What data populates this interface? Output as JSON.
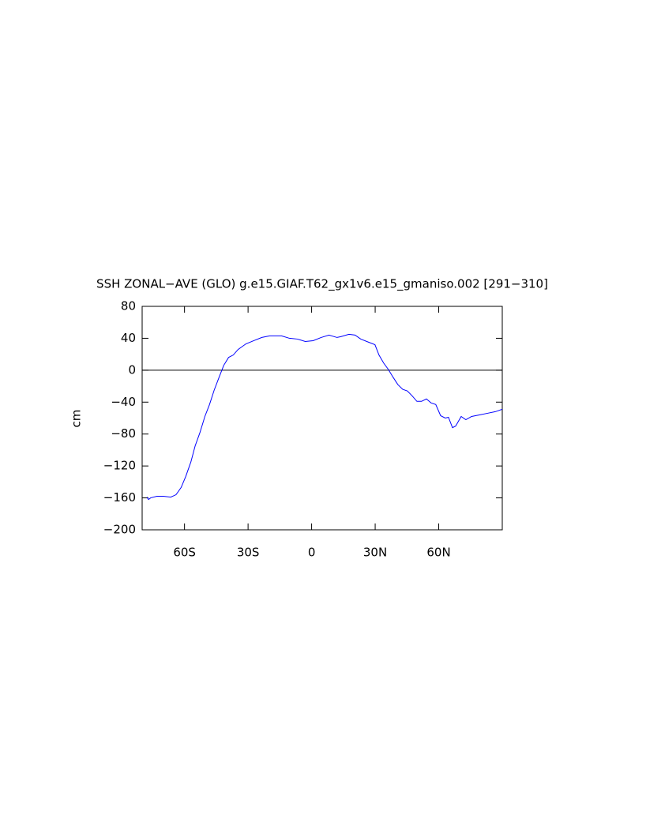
{
  "chart_data": {
    "type": "line",
    "title": "SSH ZONAL−AVE (GLO) g.e15.GIAF.T62_gx1v6.e15_gmaniso.002 [291−310]",
    "y_label": "cm",
    "x": [
      -77.7,
      -77,
      -76,
      -73,
      -70,
      -66.5,
      -64,
      -61.6,
      -59.4,
      -57,
      -55,
      -52.7,
      -50.4,
      -48.2,
      -46,
      -43.7,
      -41.5,
      -39.2,
      -37,
      -34.7,
      -31,
      -27.3,
      -23.5,
      -19.8,
      -14.2,
      -10.5,
      -6.7,
      -3,
      0.7,
      4.5,
      8.2,
      12,
      13.8,
      17.6,
      20.5,
      23.2,
      27,
      29.9,
      31.8,
      34,
      36.2,
      38.5,
      40.7,
      43,
      45.2,
      47.4,
      49.7,
      51.9,
      54.2,
      56.4,
      58.6,
      60.9,
      63.1,
      64.6,
      66.5,
      68,
      70.6,
      72.8,
      75.5,
      79.2,
      83,
      86.7,
      90
    ],
    "series": [
      {
        "name": "SSH",
        "color": "#0000ff",
        "values": [
          -159,
          -162,
          -160,
          -158,
          -158,
          -159,
          -156,
          -147,
          -133,
          -115,
          -95,
          -78,
          -58,
          -43,
          -25,
          -9,
          6,
          16,
          19,
          26,
          33,
          37,
          41,
          43,
          43,
          40,
          39,
          36,
          37,
          41,
          44,
          41,
          42,
          45,
          44,
          39,
          35,
          32,
          19,
          9,
          1,
          -9,
          -18,
          -24,
          -26,
          -32,
          -39,
          -39,
          -36,
          -41,
          -43,
          -57,
          -60,
          -59,
          -72,
          -70,
          -58,
          -62,
          -58,
          -56,
          -54,
          -52,
          -49
        ]
      }
    ],
    "xlim": [
      -80,
      90
    ],
    "xticks": [
      {
        "value": -60,
        "label": "60S"
      },
      {
        "value": -30,
        "label": "30S"
      },
      0,
      {
        "value": 30,
        "label": "30N"
      },
      {
        "value": 60,
        "label": "60N"
      }
    ],
    "ylim": [
      -200,
      80
    ],
    "yticks": [
      80,
      40,
      0,
      {
        "value": -40,
        "label": "−40"
      },
      {
        "value": -80,
        "label": "−80"
      },
      {
        "value": -120,
        "label": "−120"
      },
      {
        "value": -160,
        "label": "−160"
      },
      {
        "value": -200,
        "label": "−200"
      }
    ],
    "zero_line": true
  }
}
